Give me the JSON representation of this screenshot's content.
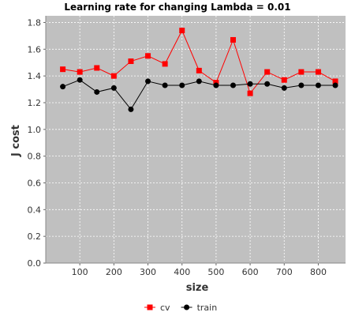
{
  "chart_data": {
    "type": "line",
    "title": "Learning rate for changing Lambda = 0.01",
    "xlabel": "size",
    "ylabel": "J cost",
    "xlim": [
      0,
      880
    ],
    "ylim": [
      0.0,
      1.85
    ],
    "x_ticks": [
      100,
      200,
      300,
      400,
      500,
      600,
      700,
      800
    ],
    "y_ticks": [
      0.0,
      0.2,
      0.4,
      0.6,
      0.8,
      1.0,
      1.2,
      1.4,
      1.6,
      1.8
    ],
    "x_tick_labels": [
      "100",
      "200",
      "300",
      "400",
      "500",
      "600",
      "700",
      "800"
    ],
    "y_tick_labels": [
      "0.0",
      "0.2",
      "0.4",
      "0.6",
      "0.8",
      "1.0",
      "1.2",
      "1.4",
      "1.6",
      "1.8"
    ],
    "grid": true,
    "legend_position": "bottom",
    "background_color": "#c0c0c0",
    "x": [
      50,
      100,
      150,
      200,
      250,
      300,
      350,
      400,
      450,
      500,
      550,
      600,
      650,
      700,
      750,
      800,
      850
    ],
    "series": [
      {
        "name": "cv",
        "color": "#ff0000",
        "marker": "square",
        "values": [
          1.45,
          1.43,
          1.46,
          1.4,
          1.51,
          1.55,
          1.49,
          1.74,
          1.44,
          1.35,
          1.67,
          1.27,
          1.43,
          1.37,
          1.43,
          1.43,
          1.36
        ]
      },
      {
        "name": "train",
        "color": "#000000",
        "marker": "circle",
        "values": [
          1.32,
          1.37,
          1.28,
          1.31,
          1.15,
          1.36,
          1.33,
          1.33,
          1.36,
          1.33,
          1.33,
          1.34,
          1.34,
          1.31,
          1.33,
          1.33,
          1.33
        ]
      }
    ]
  }
}
